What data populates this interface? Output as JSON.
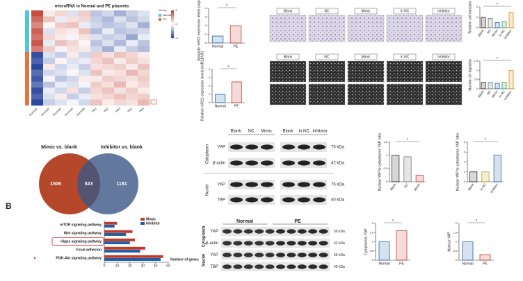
{
  "heatmap": {
    "title": "microRNA in Normal and PE placents",
    "columns": [
      "Normal1",
      "Normal2",
      "Normal3",
      "Normal4",
      "Normal5",
      "PE1",
      "PE2",
      "PE3",
      "PE4",
      "PE5"
    ],
    "group_legend": {
      "title": "Group",
      "items": [
        {
          "name": "Normal",
          "color": "#4fc3e0",
          "rows": 7
        },
        {
          "name": "PE",
          "color": "#e8743b",
          "rows": 9
        }
      ]
    },
    "color_scale": {
      "limits": [
        -2,
        2
      ],
      "ticks": [
        2,
        0,
        -2
      ],
      "low": "#1f3d99",
      "mid": "#ffffff",
      "high": "#c0392b"
    },
    "values": [
      [
        1.8,
        0.2,
        0.4,
        -0.3,
        0.5,
        -0.6,
        -0.4,
        -0.8,
        -0.5,
        -0.3
      ],
      [
        1.5,
        0.6,
        -0.2,
        0.3,
        0.4,
        -0.5,
        -0.7,
        -0.3,
        -0.6,
        -0.4
      ],
      [
        1.2,
        0.1,
        0.5,
        0.6,
        -0.2,
        -0.4,
        -0.6,
        -0.5,
        -0.3,
        -0.8
      ],
      [
        1.6,
        -0.3,
        0.3,
        0.2,
        0.6,
        -0.7,
        -0.2,
        -0.6,
        -0.5,
        -0.4
      ],
      [
        1.4,
        0.4,
        0.2,
        -0.1,
        0.3,
        -0.3,
        -0.5,
        -0.4,
        -0.9,
        -0.2
      ],
      [
        1.7,
        -0.2,
        0.6,
        0.4,
        0.1,
        -0.6,
        -0.3,
        -0.7,
        -0.2,
        -0.6
      ],
      [
        1.3,
        0.5,
        -0.1,
        0.3,
        0.2,
        -0.4,
        -0.8,
        -0.2,
        -0.5,
        -0.7
      ],
      [
        -1.8,
        -0.3,
        -0.5,
        0.2,
        -0.4,
        0.5,
        0.3,
        0.6,
        0.4,
        0.2
      ],
      [
        -1.6,
        -0.5,
        0.1,
        -0.3,
        -0.2,
        0.4,
        0.6,
        0.2,
        0.5,
        0.3
      ],
      [
        -1.9,
        0.2,
        -0.4,
        -0.2,
        -0.5,
        0.3,
        0.4,
        0.5,
        0.2,
        0.6
      ],
      [
        -1.5,
        -0.4,
        -0.3,
        0.1,
        -0.3,
        0.6,
        0.2,
        0.3,
        0.7,
        0.4
      ],
      [
        -1.7,
        -0.1,
        -0.6,
        -0.4,
        0.2,
        0.2,
        0.5,
        0.4,
        0.3,
        0.5
      ],
      [
        -1.4,
        -0.6,
        -0.2,
        -0.3,
        -0.1,
        0.5,
        0.3,
        0.7,
        0.2,
        0.4
      ],
      [
        -1.8,
        -0.2,
        -0.4,
        0.3,
        -0.5,
        0.4,
        0.6,
        0.3,
        0.5,
        0.2
      ],
      [
        -1.6,
        -0.3,
        0.2,
        -0.5,
        -0.2,
        0.3,
        0.4,
        0.6,
        0.4,
        0.5
      ],
      [
        -1.9,
        -0.5,
        -0.3,
        -0.1,
        -0.4,
        0.6,
        0.2,
        0.4,
        0.3,
        0.7
      ]
    ]
  },
  "invasion_images": {
    "labels": [
      "Blank",
      "NC",
      "Mimic",
      "In NC",
      "Inhibitor"
    ]
  },
  "migration_images": {
    "labels": [
      "Blank",
      "NC",
      "Mimic",
      "In NC",
      "Inhibitor"
    ]
  },
  "venn": {
    "sets": [
      {
        "name": "Mimic vs. blank",
        "color": "#b5482a"
      },
      {
        "name": "Inhibitor vs. blank",
        "color": "#3b5684"
      }
    ],
    "counts": [
      1506,
      523,
      1181
    ]
  },
  "panel_label": "B",
  "blot_treatment": {
    "compartments": [
      "Cytoplasm",
      "Nuclei"
    ],
    "lanes_left": [
      "Blank",
      "NC",
      "Mimic"
    ],
    "lanes_right": [
      "Blank",
      "In NC",
      "Inhibitor"
    ],
    "rows": [
      {
        "protein": "YAP",
        "size": "75 kDa"
      },
      {
        "protein": "β-actin",
        "size": "42 kDa"
      },
      {
        "protein": "YAP",
        "size": "75 kDa"
      },
      {
        "protein": "TBP",
        "size": "40 kDa"
      }
    ]
  },
  "blot_tissue": {
    "groups": [
      "Normal",
      "PE"
    ],
    "compartments": [
      "Cytoplasm",
      "Nuclei"
    ],
    "rows": [
      {
        "protein": "YAP",
        "size": "50 kDa"
      },
      {
        "protein": "β-actin",
        "size": "42 kDa"
      },
      {
        "protein": "YAP",
        "size": "50 kDa"
      },
      {
        "protein": "TBP",
        "size": "40 kDa"
      }
    ]
  },
  "chart_data": [
    {
      "type": "bar",
      "ylabel": "Absolute miR21 expression levels (copies/ng)",
      "categories": [
        "Normal",
        "PE"
      ],
      "values": [
        0.8,
        2.0
      ],
      "colors": [
        "#1f5fa8",
        "#c0392b"
      ],
      "ylim": [
        0,
        4
      ],
      "yticks": [
        0,
        1,
        2,
        3,
        4
      ],
      "annotation": "*"
    },
    {
      "type": "bar",
      "ylabel": "Relative miR21 expression levels (miR21/U6)",
      "categories": [
        "Normal",
        "PE"
      ],
      "values": [
        1.0,
        2.5
      ],
      "colors": [
        "#1f5fa8",
        "#c0392b"
      ],
      "ylim": [
        0,
        4
      ],
      "yticks": [
        0,
        1,
        2,
        3,
        4
      ],
      "annotation": "*"
    },
    {
      "type": "bar",
      "ylabel": "Relative cell invasion",
      "categories": [
        "Blank",
        "NC",
        "Mimic",
        "In NC",
        "Inhibitor"
      ],
      "values": [
        1.0,
        0.9,
        0.5,
        0.6,
        1.5
      ],
      "colors": [
        "#222222",
        "#777777",
        "#1f5fa8",
        "#3a9b5c",
        "#e08a1e"
      ],
      "ylim": [
        0,
        2
      ],
      "yticks": [
        0,
        1,
        2
      ],
      "annotation": "*"
    },
    {
      "type": "bar",
      "ylabel": "Number of migration",
      "categories": [
        "Blank",
        "NC",
        "Mimic",
        "In NC",
        "Inhibitor"
      ],
      "values": [
        0.35,
        0.35,
        0.3,
        0.35,
        1.0
      ],
      "colors": [
        "#222222",
        "#777777",
        "#1f5fa8",
        "#3a9b5c",
        "#e08a1e"
      ],
      "ylim": [
        0,
        1.5
      ],
      "yticks": [
        0,
        0.5,
        1,
        1.5
      ],
      "annotation": "*"
    },
    {
      "type": "bar",
      "ylabel": "Nuclear YAP to cytoplasmic YAP ratio",
      "categories": [
        "Blank",
        "NC",
        "Mimic"
      ],
      "values": [
        1.0,
        0.95,
        0.25
      ],
      "colors": [
        "#222222",
        "#777777",
        "#c0392b"
      ],
      "ylim": [
        0,
        1.5
      ],
      "yticks": [
        0,
        0.5,
        1,
        1.5
      ],
      "annotation": "*"
    },
    {
      "type": "bar",
      "ylabel": "Nuclear YAP to cytoplasmic YAP ratio",
      "categories": [
        "Blank",
        "In NC",
        "Inhibitor"
      ],
      "values": [
        1.0,
        1.0,
        2.7
      ],
      "colors": [
        "#222222",
        "#b89b1a",
        "#1f5fa8"
      ],
      "ylim": [
        0,
        4
      ],
      "yticks": [
        0,
        1,
        2,
        3,
        4
      ],
      "annotation": "*"
    },
    {
      "type": "bar",
      "ylabel": "Cytoplasmic YAP",
      "categories": [
        "Normal",
        "PE"
      ],
      "values": [
        1.0,
        1.6
      ],
      "colors": [
        "#1f5fa8",
        "#c0392b"
      ],
      "ylim": [
        0,
        2
      ],
      "yticks": [
        0,
        0.5,
        1,
        1.5,
        2
      ],
      "annotation": "*"
    },
    {
      "type": "bar",
      "ylabel": "Nuclear YAP",
      "categories": [
        "Normal",
        "PE"
      ],
      "values": [
        1.0,
        0.3
      ],
      "colors": [
        "#1f5fa8",
        "#c0392b"
      ],
      "ylim": [
        0,
        2
      ],
      "yticks": [
        0,
        0.5,
        1,
        1.5,
        2
      ],
      "annotation": "*"
    },
    {
      "type": "barh",
      "xlabel": "Number of genes",
      "categories": [
        "mTOR signaling pathway",
        "Wnt signaling pathway",
        "Hippo signaling pathway",
        "Focal adhesion",
        "PI3K-Akt signaling pathway"
      ],
      "series": [
        {
          "name": "Mimic",
          "color": "#c0392b",
          "values": [
            10,
            22,
            24,
            32,
            46
          ]
        },
        {
          "name": "Inhibitor",
          "color": "#1f5fa8",
          "values": [
            8,
            17,
            20,
            28,
            44
          ]
        }
      ],
      "xlim": [
        0,
        50
      ],
      "xticks": [
        0,
        10,
        20,
        30,
        40,
        50
      ]
    }
  ]
}
